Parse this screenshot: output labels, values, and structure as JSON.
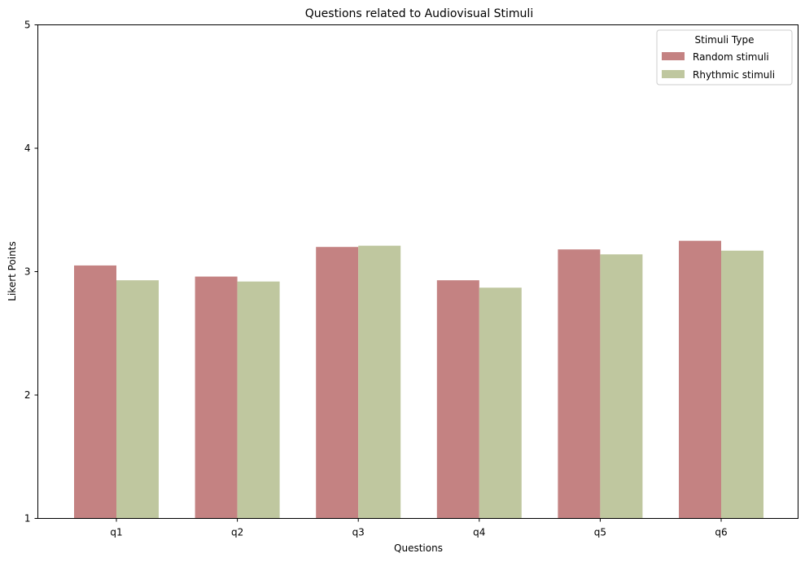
{
  "chart_data": {
    "type": "bar",
    "title": "Questions related to Audiovisual Stimuli",
    "xlabel": "Questions",
    "ylabel": "Likert Points",
    "categories": [
      "q1",
      "q2",
      "q3",
      "q4",
      "q5",
      "q6"
    ],
    "ylim": [
      1,
      5
    ],
    "yticks": [
      "1",
      "2",
      "3",
      "4",
      "5"
    ],
    "grid": false,
    "legend": {
      "title": "Stimuli Type",
      "placement": "top-right"
    },
    "series": [
      {
        "name": "Random stimuli",
        "color": "#c48282",
        "values": [
          3.05,
          2.96,
          3.2,
          2.93,
          3.18,
          3.25
        ]
      },
      {
        "name": "Rhythmic stimuli",
        "color": "#bfc79f",
        "values": [
          2.93,
          2.92,
          3.21,
          2.87,
          3.14,
          3.17
        ]
      }
    ]
  }
}
